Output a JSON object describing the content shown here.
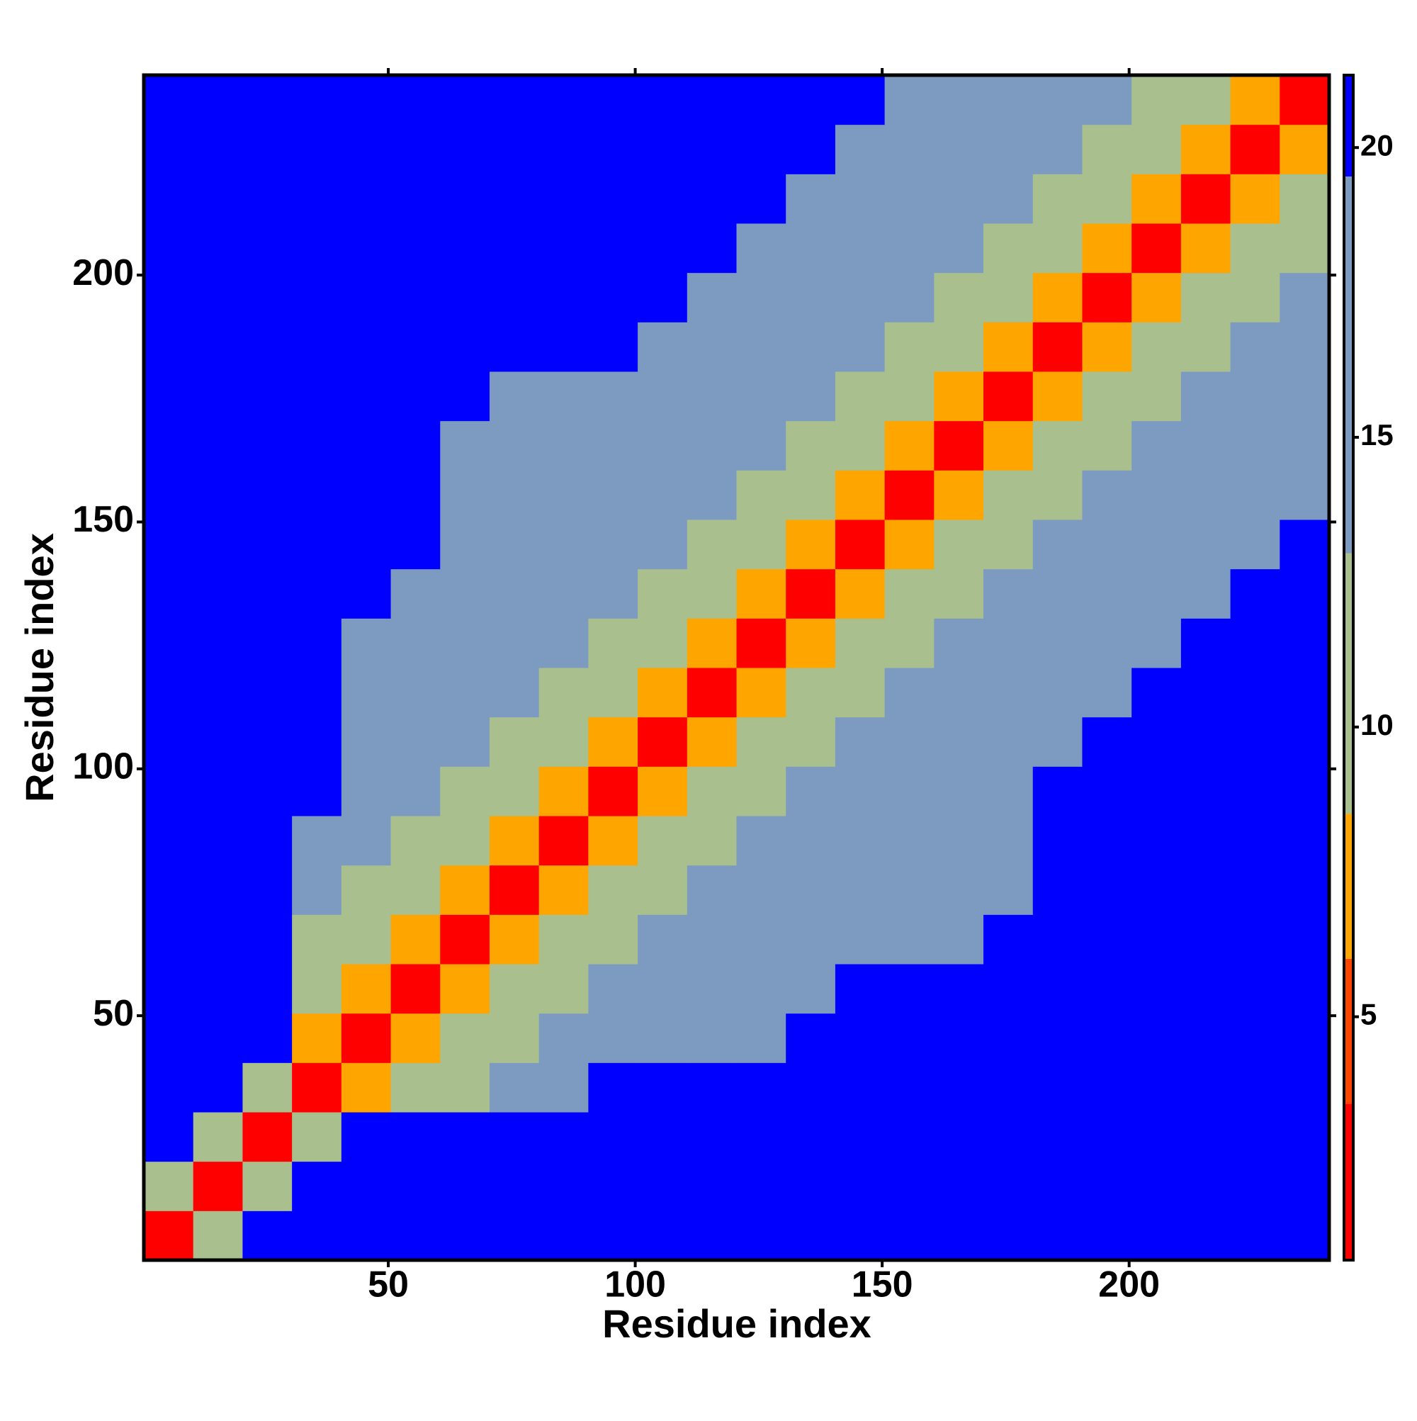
{
  "chart_data": {
    "type": "heatmap",
    "xlabel": "Residue index",
    "ylabel": "Residue index",
    "x": [
      5.5,
      15.5,
      25.5,
      35.5,
      45.5,
      55.5,
      65.5,
      75.5,
      85.5,
      95.5,
      105.5,
      115.5,
      125.5,
      135.5,
      145.5,
      155.5,
      165.5,
      175.5,
      185.5,
      195.5,
      205.5,
      215.5,
      225.5,
      235.5
    ],
    "y": [
      5.5,
      15.5,
      25.5,
      35.5,
      45.5,
      55.5,
      65.5,
      75.5,
      85.5,
      95.5,
      105.5,
      115.5,
      125.5,
      135.5,
      145.5,
      155.5,
      165.5,
      175.5,
      185.5,
      195.5,
      205.5,
      215.5,
      225.5,
      235.5
    ],
    "z": [
      [
        3,
        10,
        21,
        21,
        21,
        21,
        21,
        21,
        21,
        21,
        21,
        21,
        21,
        21,
        21,
        21,
        21,
        21,
        21,
        21,
        21,
        21,
        21,
        21
      ],
      [
        10,
        3,
        10,
        21,
        21,
        21,
        21,
        21,
        21,
        21,
        21,
        21,
        21,
        21,
        21,
        21,
        21,
        21,
        21,
        21,
        21,
        21,
        21,
        21
      ],
      [
        21,
        10,
        3,
        10,
        21,
        21,
        21,
        21,
        21,
        21,
        21,
        21,
        21,
        21,
        21,
        21,
        21,
        21,
        21,
        21,
        21,
        21,
        21,
        21
      ],
      [
        21,
        21,
        10,
        3,
        8,
        9,
        11,
        14,
        17,
        21,
        21,
        21,
        21,
        21,
        21,
        21,
        21,
        21,
        21,
        21,
        21,
        21,
        21,
        21
      ],
      [
        21,
        21,
        21,
        8,
        3,
        8,
        9,
        11,
        14,
        14,
        14,
        14,
        17,
        21,
        21,
        21,
        21,
        21,
        21,
        21,
        21,
        21,
        21,
        21
      ],
      [
        21,
        21,
        21,
        9,
        8,
        3,
        8,
        9,
        11,
        14,
        14,
        14,
        14,
        17,
        21,
        21,
        21,
        21,
        21,
        21,
        21,
        21,
        21,
        21
      ],
      [
        21,
        21,
        21,
        11,
        9,
        8,
        3,
        8,
        9,
        11,
        14,
        14,
        14,
        14,
        14,
        14,
        17,
        21,
        21,
        21,
        21,
        21,
        21,
        21
      ],
      [
        21,
        21,
        21,
        14,
        11,
        9,
        8,
        3,
        8,
        9,
        11,
        14,
        14,
        14,
        14,
        14,
        14,
        17,
        21,
        21,
        21,
        21,
        21,
        21
      ],
      [
        21,
        21,
        21,
        17,
        14,
        11,
        9,
        8,
        3,
        8,
        9,
        11,
        14,
        14,
        14,
        14,
        14,
        17,
        21,
        21,
        21,
        21,
        21,
        21
      ],
      [
        21,
        21,
        21,
        21,
        14,
        14,
        11,
        9,
        8,
        3,
        8,
        9,
        11,
        14,
        14,
        14,
        14,
        17,
        21,
        21,
        21,
        21,
        21,
        21
      ],
      [
        21,
        21,
        21,
        21,
        14,
        14,
        14,
        11,
        9,
        8,
        3,
        8,
        9,
        11,
        14,
        14,
        14,
        14,
        17,
        21,
        21,
        21,
        21,
        21
      ],
      [
        21,
        21,
        21,
        21,
        14,
        14,
        14,
        14,
        11,
        9,
        8,
        3,
        8,
        9,
        11,
        14,
        14,
        14,
        14,
        17,
        21,
        21,
        21,
        21
      ],
      [
        21,
        21,
        21,
        21,
        17,
        14,
        14,
        14,
        14,
        11,
        9,
        8,
        3,
        8,
        9,
        11,
        14,
        14,
        14,
        14,
        17,
        21,
        21,
        21
      ],
      [
        21,
        21,
        21,
        21,
        21,
        17,
        14,
        14,
        14,
        14,
        11,
        9,
        8,
        3,
        8,
        9,
        11,
        14,
        14,
        14,
        14,
        17,
        21,
        21
      ],
      [
        21,
        21,
        21,
        21,
        21,
        21,
        14,
        14,
        14,
        14,
        14,
        11,
        9,
        8,
        3,
        8,
        9,
        11,
        14,
        14,
        14,
        14,
        17,
        21
      ],
      [
        21,
        21,
        21,
        21,
        21,
        21,
        14,
        14,
        14,
        14,
        14,
        14,
        11,
        9,
        8,
        3,
        8,
        9,
        11,
        14,
        14,
        14,
        14,
        17
      ],
      [
        21,
        21,
        21,
        21,
        21,
        21,
        17,
        14,
        14,
        14,
        14,
        14,
        14,
        11,
        9,
        8,
        3,
        8,
        9,
        11,
        14,
        14,
        14,
        17
      ],
      [
        21,
        21,
        21,
        21,
        21,
        21,
        21,
        17,
        17,
        17,
        14,
        14,
        14,
        14,
        11,
        9,
        8,
        3,
        8,
        9,
        11,
        14,
        14,
        17
      ],
      [
        21,
        21,
        21,
        21,
        21,
        21,
        21,
        21,
        21,
        21,
        17,
        14,
        14,
        14,
        14,
        11,
        9,
        8,
        3,
        8,
        9,
        11,
        14,
        17
      ],
      [
        21,
        21,
        21,
        21,
        21,
        21,
        21,
        21,
        21,
        21,
        21,
        17,
        14,
        14,
        14,
        14,
        11,
        9,
        8,
        3,
        8,
        9,
        11,
        17
      ],
      [
        21,
        21,
        21,
        21,
        21,
        21,
        21,
        21,
        21,
        21,
        21,
        21,
        17,
        14,
        14,
        14,
        14,
        11,
        9,
        8,
        3,
        8,
        9,
        11
      ],
      [
        21,
        21,
        21,
        21,
        21,
        21,
        21,
        21,
        21,
        21,
        21,
        21,
        21,
        17,
        14,
        14,
        14,
        14,
        11,
        9,
        8,
        3,
        8,
        9
      ],
      [
        21,
        21,
        21,
        21,
        21,
        21,
        21,
        21,
        21,
        21,
        21,
        21,
        21,
        21,
        17,
        14,
        14,
        14,
        14,
        11,
        9,
        8,
        3,
        8
      ],
      [
        21,
        21,
        21,
        21,
        21,
        21,
        21,
        21,
        21,
        21,
        21,
        21,
        21,
        21,
        21,
        17,
        17,
        17,
        17,
        17,
        11,
        9,
        8,
        3
      ]
    ],
    "xlim": [
      0.5,
      240.5
    ],
    "ylim": [
      0.5,
      240.5
    ],
    "xticks": [
      50,
      100,
      150,
      200
    ],
    "yticks": [
      50,
      100,
      150,
      200
    ],
    "zlim": [
      0.8,
      21.25
    ],
    "zticks": [
      5,
      10,
      15,
      20
    ],
    "colorscale": [
      [
        3.5,
        "#ff0000"
      ],
      [
        6,
        "#ff4500"
      ],
      [
        8.5,
        "#ffa500"
      ],
      [
        13,
        "#a9bf8e"
      ],
      [
        19.5,
        "#7d9bc1"
      ],
      [
        21.25,
        "#0000ff"
      ]
    ]
  }
}
